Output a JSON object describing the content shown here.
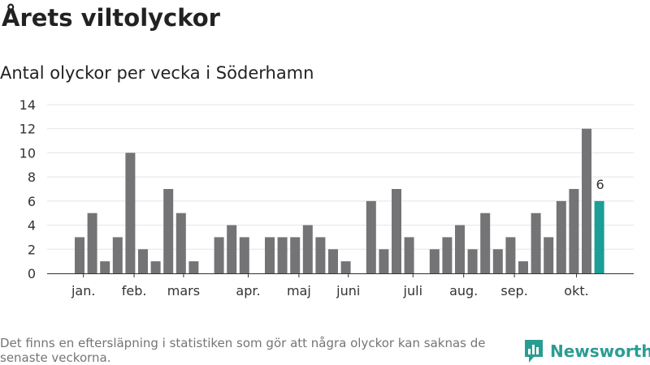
{
  "title": "Årets viltolyckor",
  "subtitle": "Antal olyckor per vecka i Söderhamn",
  "footnote": "Det finns en eftersläpning i statistiken som gör att några olyckor kan saknas de senaste veckorna.",
  "brand": "Newsworthy",
  "colors": {
    "bar": "#747476",
    "highlight": "#1a9e96",
    "grid": "#e4e4e4",
    "axis": "#333333",
    "brand": "#2a9d93"
  },
  "chart_data": {
    "type": "bar",
    "title": "Antal olyckor per vecka i Söderhamn",
    "xlabel": "",
    "ylabel": "",
    "ylim": [
      0,
      14
    ],
    "yticks": [
      0,
      2,
      4,
      6,
      8,
      10,
      12,
      14
    ],
    "grid": true,
    "x": [
      1,
      2,
      3,
      4,
      5,
      6,
      7,
      8,
      9,
      10,
      11,
      12,
      13,
      14,
      15,
      16,
      17,
      18,
      19,
      20,
      21,
      22,
      23,
      24,
      25,
      26,
      27,
      28,
      29,
      30,
      31,
      32,
      33,
      34,
      35,
      36,
      37,
      38,
      39,
      40,
      41,
      42,
      43,
      44
    ],
    "values": [
      3,
      5,
      1,
      3,
      10,
      2,
      1,
      7,
      5,
      1,
      0,
      3,
      4,
      3,
      0,
      3,
      3,
      3,
      4,
      3,
      2,
      1,
      0,
      6,
      2,
      7,
      3,
      0,
      2,
      3,
      4,
      2,
      5,
      2,
      3,
      1,
      5,
      3,
      6,
      7,
      12,
      6,
      0,
      0
    ],
    "highlight_index": 41,
    "highlight_label": "6",
    "month_ticks": [
      {
        "label": "jan.",
        "pos": 1.3
      },
      {
        "label": "feb.",
        "pos": 5.3
      },
      {
        "label": "mars",
        "pos": 9.2
      },
      {
        "label": "apr.",
        "pos": 14.3
      },
      {
        "label": "maj",
        "pos": 18.3
      },
      {
        "label": "juni",
        "pos": 22.2
      },
      {
        "label": "juli",
        "pos": 27.3
      },
      {
        "label": "aug.",
        "pos": 31.3
      },
      {
        "label": "sep.",
        "pos": 35.3
      },
      {
        "label": "okt.",
        "pos": 40.2
      }
    ]
  }
}
